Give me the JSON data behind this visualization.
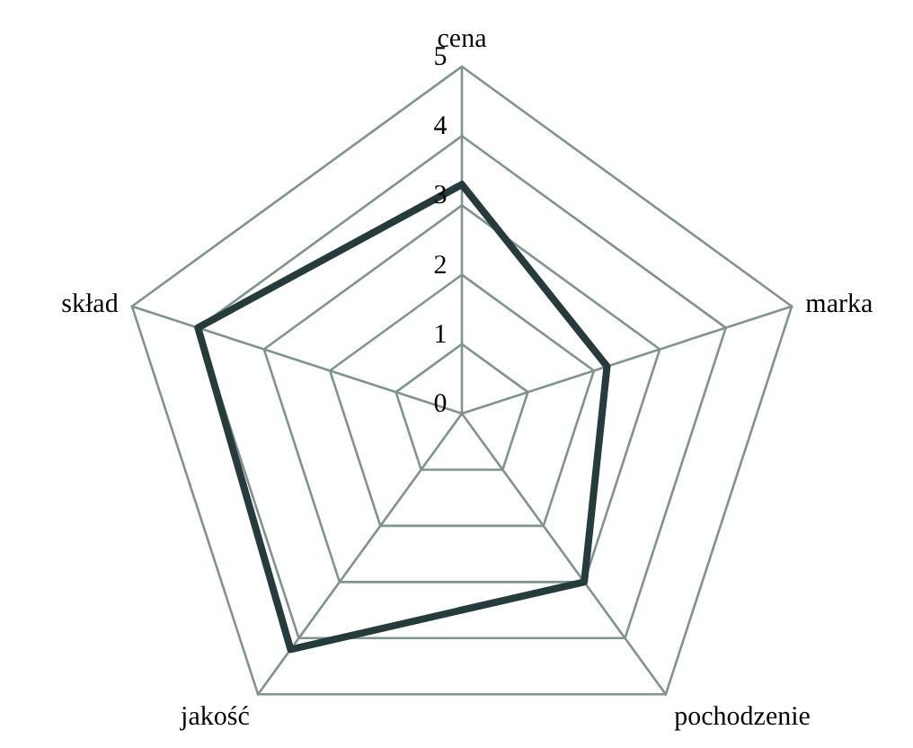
{
  "chart_data": {
    "type": "radar",
    "categories": [
      "cena",
      "marka",
      "pochodzenie",
      "jakość",
      "skład"
    ],
    "series": [
      {
        "color": "#263c3c",
        "values": [
          3.3,
          2.2,
          3.0,
          4.2,
          4.0
        ]
      }
    ],
    "ylim": [
      0,
      5
    ],
    "yticks": [
      0,
      1,
      2,
      3,
      4,
      5
    ],
    "grid": true,
    "line_style": "solid"
  }
}
